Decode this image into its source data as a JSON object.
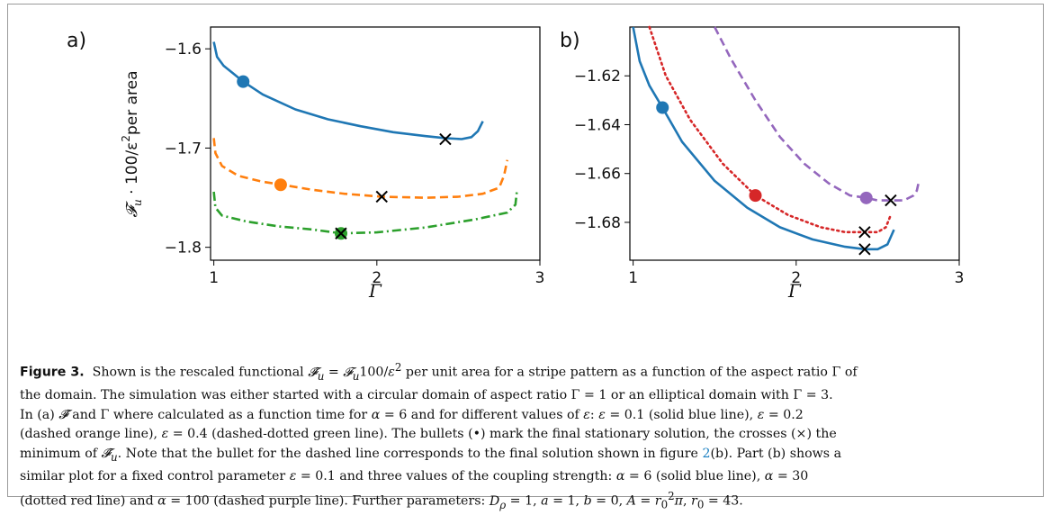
{
  "figure": {
    "panels": [
      {
        "label": "a)",
        "xlabel": "Γ",
        "ylabel_math": "𝓕",
        "ylabel_sub": "u",
        "ylabel_rest": " · 100/ε",
        "ylabel_sup": "2",
        "ylabel_tail": "per area",
        "xticks": [
          "1",
          "2",
          "3"
        ],
        "yticks": [
          "−1.6",
          "−1.7",
          "−1.8"
        ]
      },
      {
        "label": "b)",
        "xlabel": "Γ",
        "xticks": [
          "1",
          "2",
          "3"
        ],
        "yticks": [
          "−1.62",
          "−1.64",
          "−1.66",
          "−1.68"
        ]
      }
    ]
  },
  "chart_data": [
    {
      "type": "line",
      "xlabel": "Γ",
      "ylabel": "𝓕u · 100/ε² per area",
      "xlim": [
        0.98,
        3.0
      ],
      "ylim": [
        -1.813,
        -1.578
      ],
      "xticks": [
        1,
        2,
        3
      ],
      "yticks": [
        -1.6,
        -1.7,
        -1.8
      ],
      "series": [
        {
          "name": "ε = 0.1",
          "color": "#1f77b4",
          "style": "solid",
          "x": [
            1.0,
            1.02,
            1.06,
            1.12,
            1.18,
            1.3,
            1.5,
            1.7,
            1.9,
            2.1,
            2.3,
            2.42,
            2.52,
            2.58,
            2.62,
            2.65
          ],
          "y": [
            -1.593,
            -1.608,
            -1.617,
            -1.625,
            -1.633,
            -1.646,
            -1.661,
            -1.671,
            -1.678,
            -1.684,
            -1.688,
            -1.69,
            -1.691,
            -1.689,
            -1.683,
            -1.673
          ],
          "bullet": [
            1.18,
            -1.633
          ],
          "cross": [
            2.42,
            -1.691
          ]
        },
        {
          "name": "ε = 0.2",
          "color": "#ff7f0e",
          "style": "dashed",
          "x": [
            1.0,
            1.01,
            1.05,
            1.15,
            1.3,
            1.42,
            1.6,
            1.8,
            2.03,
            2.3,
            2.5,
            2.65,
            2.75,
            2.78,
            2.8
          ],
          "y": [
            -1.69,
            -1.705,
            -1.718,
            -1.728,
            -1.734,
            -1.737,
            -1.742,
            -1.746,
            -1.749,
            -1.75,
            -1.749,
            -1.746,
            -1.74,
            -1.728,
            -1.712
          ],
          "bullet": [
            1.41,
            -1.737
          ],
          "cross": [
            2.03,
            -1.749
          ]
        },
        {
          "name": "ε = 0.4",
          "color": "#2ca02c",
          "style": "dashdot",
          "x": [
            1.0,
            1.01,
            1.05,
            1.2,
            1.4,
            1.6,
            1.78,
            2.0,
            2.3,
            2.6,
            2.8,
            2.85,
            2.86
          ],
          "y": [
            -1.744,
            -1.76,
            -1.768,
            -1.774,
            -1.779,
            -1.782,
            -1.786,
            -1.785,
            -1.78,
            -1.772,
            -1.765,
            -1.757,
            -1.742
          ],
          "bullet": [
            1.78,
            -1.786
          ],
          "cross": [
            1.78,
            -1.786
          ]
        }
      ]
    },
    {
      "type": "line",
      "xlabel": "Γ",
      "xlim": [
        0.98,
        3.0
      ],
      "ylim": [
        -1.6955,
        -1.6
      ],
      "xticks": [
        1,
        2,
        3
      ],
      "yticks": [
        -1.62,
        -1.64,
        -1.66,
        -1.68
      ],
      "series": [
        {
          "name": "α = 6",
          "color": "#1f77b4",
          "style": "solid",
          "x": [
            1.0,
            1.04,
            1.1,
            1.18,
            1.3,
            1.5,
            1.7,
            1.9,
            2.1,
            2.3,
            2.42,
            2.5,
            2.56,
            2.6
          ],
          "y": [
            -1.6,
            -1.614,
            -1.624,
            -1.633,
            -1.647,
            -1.663,
            -1.674,
            -1.682,
            -1.687,
            -1.69,
            -1.691,
            -1.691,
            -1.689,
            -1.683
          ],
          "bullet": [
            1.18,
            -1.633
          ],
          "cross": [
            2.42,
            -1.691
          ]
        },
        {
          "name": "α = 30",
          "color": "#d62728",
          "style": "dotted",
          "x": [
            1.1,
            1.2,
            1.35,
            1.55,
            1.75,
            1.95,
            2.15,
            2.3,
            2.42,
            2.5,
            2.55,
            2.58
          ],
          "y": [
            -1.6,
            -1.62,
            -1.638,
            -1.656,
            -1.669,
            -1.677,
            -1.682,
            -1.684,
            -1.684,
            -1.684,
            -1.682,
            -1.677
          ],
          "bullet": [
            1.75,
            -1.669
          ],
          "cross": [
            2.42,
            -1.684
          ]
        },
        {
          "name": "α = 100",
          "color": "#9467bd",
          "style": "dashed",
          "x": [
            1.5,
            1.6,
            1.75,
            1.9,
            2.05,
            2.2,
            2.33,
            2.43,
            2.5,
            2.58,
            2.66,
            2.72,
            2.74,
            2.75
          ],
          "y": [
            -1.6,
            -1.613,
            -1.63,
            -1.645,
            -1.656,
            -1.664,
            -1.669,
            -1.67,
            -1.671,
            -1.671,
            -1.671,
            -1.669,
            -1.667,
            -1.664
          ],
          "bullet": [
            2.43,
            -1.67
          ],
          "cross": [
            2.58,
            -1.671
          ]
        }
      ]
    }
  ],
  "caption": {
    "lines": [
      "<b>Figure 3.</b>&nbsp; Shown is the rescaled functional <i>𝓕̃<sub>u</sub></i> = <i>𝓕<sub>u</sub></i>100/<i>ε</i><sup>2</sup> per unit area for a stripe pattern as a function of the aspect ratio Γ of",
      "the domain. The simulation was either started with a circular domain of aspect ratio Γ = 1 or an elliptical domain with Γ = 3.",
      "In (a) <i>𝓕̃</i> and Γ where calculated as a function time for <i>α</i> = 6 and for different values of <i>ε</i>: <i>ε</i> = 0.1 (solid blue line), <i>ε</i> = 0.2",
      "(dashed orange line), <i>ε</i> = 0.4 (dashed-dotted green line). The bullets (•) mark the final stationary solution, the crosses (×) the",
      "minimum of <i>𝓕̃<sub>u</sub></i>. Note that the bullet for the dashed line corresponds to the final solution shown in figure <span class=\"ref\">2</span>(b). Part (b) shows a",
      "similar plot for a fixed control parameter <i>ε</i> = 0.1 and three values of the coupling strength: <i>α</i> = 6 (solid blue line), <i>α</i> = 30",
      "(dotted red line) and <i>α</i> = 100 (dashed purple line). Further parameters: <i>D<sub>ρ</sub></i> = 1, <i>a</i> = 1, <i>b</i> = 0, <i>A</i> = <i>r</i><sub>0</sub><sup>2</sup><i>π</i>, <i>r</i><sub>0</sub> = 43."
    ]
  }
}
